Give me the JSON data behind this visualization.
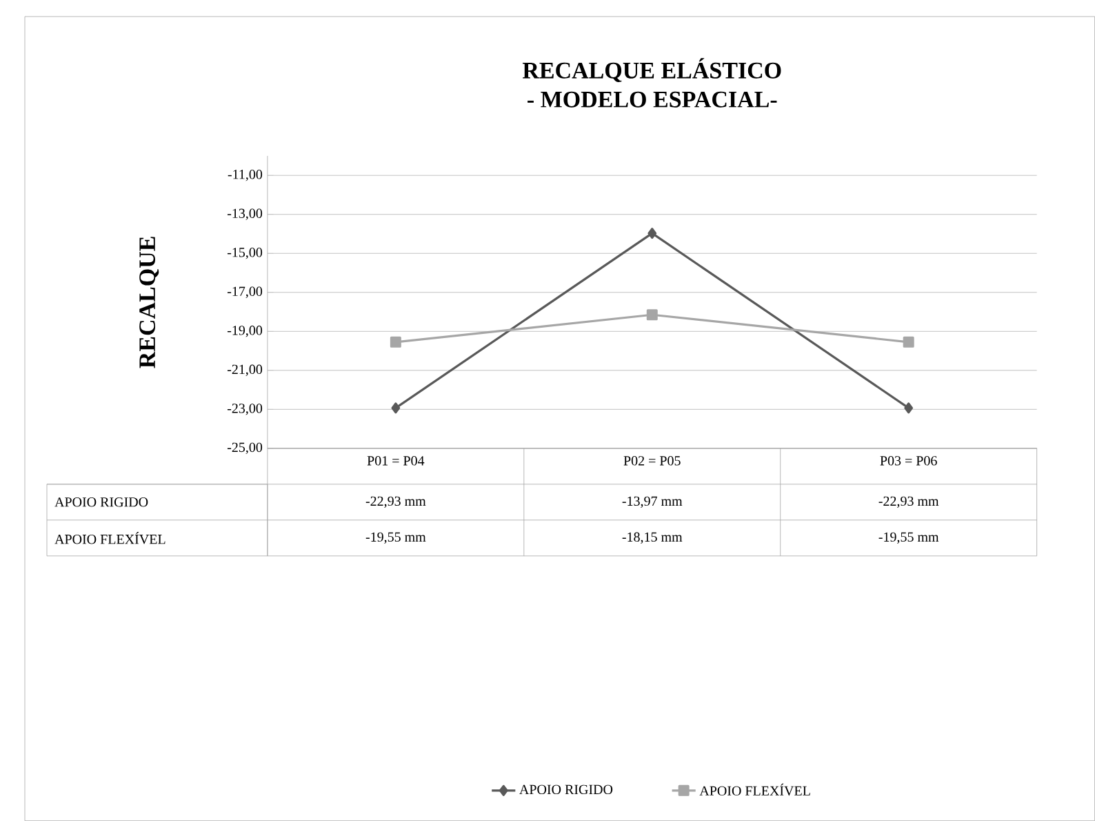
{
  "chart_data": {
    "type": "line",
    "title": "RECALQUE ELÁSTICO",
    "subtitle": "- MODELO ESPACIAL-",
    "ylabel": "RECALQUE",
    "categories": [
      "P01 = P04",
      "P02 = P05",
      "P03 = P06"
    ],
    "series": [
      {
        "name": "APOIO RIGIDO",
        "color": "#595959",
        "marker": "diamond",
        "values": [
          -22.93,
          -13.97,
          -22.93
        ],
        "value_labels": [
          "-22,93 mm",
          "-13,97 mm",
          "-22,93 mm"
        ]
      },
      {
        "name": "APOIO FLEXÍVEL",
        "color": "#a6a6a6",
        "marker": "square",
        "values": [
          -19.55,
          -18.15,
          -19.55
        ],
        "value_labels": [
          "-19,55 mm",
          "-18,15 mm",
          "-19,55 mm"
        ]
      }
    ],
    "ylim": [
      -25,
      -10
    ],
    "yticks": [
      {
        "value": -25,
        "label": "-25,00"
      },
      {
        "value": -23,
        "label": "-23,00"
      },
      {
        "value": -21,
        "label": "-21,00"
      },
      {
        "value": -19,
        "label": "-19,00"
      },
      {
        "value": -17,
        "label": "-17,00"
      },
      {
        "value": -15,
        "label": "-15,00"
      },
      {
        "value": -13,
        "label": "-13,00"
      },
      {
        "value": -11,
        "label": "-11,00"
      }
    ],
    "grid": "y",
    "legend": "bottom"
  }
}
